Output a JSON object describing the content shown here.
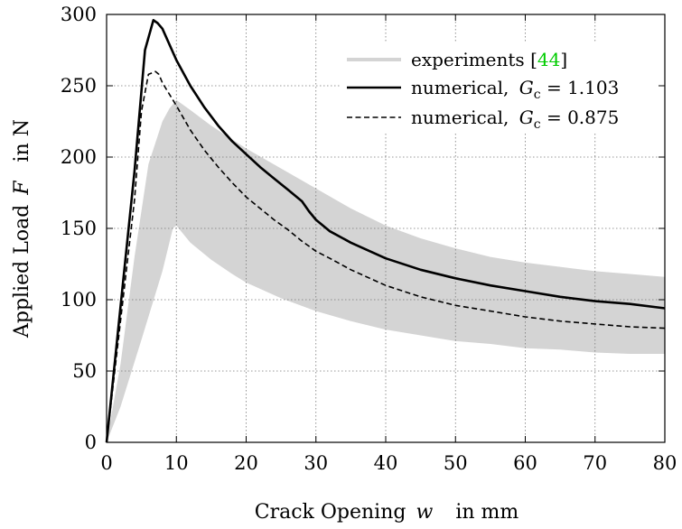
{
  "chart_data": {
    "type": "line",
    "xlabel_text": "Crack Opening",
    "xlabel_var": "w",
    "xlabel_unit": "in mm",
    "ylabel_text": "Applied Load",
    "ylabel_var": "F",
    "ylabel_unit": "in N",
    "xlim": [
      0,
      80
    ],
    "ylim": [
      0,
      300
    ],
    "x_ticks": [
      0,
      10,
      20,
      30,
      40,
      50,
      60,
      70,
      80
    ],
    "y_ticks": [
      0,
      50,
      100,
      150,
      200,
      250,
      300
    ],
    "grid": true,
    "legend_position": "top-right",
    "colors": {
      "band": "#d4d4d4",
      "line": "#000000",
      "citation": "#00cc00"
    },
    "band": {
      "name": "experiments",
      "citation": "44",
      "upper": [
        [
          0,
          0
        ],
        [
          2,
          55
        ],
        [
          4,
          130
        ],
        [
          6,
          195
        ],
        [
          8,
          225
        ],
        [
          9,
          234
        ],
        [
          10,
          240
        ],
        [
          12,
          233
        ],
        [
          15,
          222
        ],
        [
          20,
          206
        ],
        [
          25,
          192
        ],
        [
          30,
          178
        ],
        [
          35,
          164
        ],
        [
          40,
          152
        ],
        [
          45,
          143
        ],
        [
          50,
          136
        ],
        [
          55,
          130
        ],
        [
          60,
          126
        ],
        [
          65,
          123
        ],
        [
          70,
          120
        ],
        [
          75,
          118
        ],
        [
          80,
          116
        ]
      ],
      "lower": [
        [
          0,
          0
        ],
        [
          2,
          25
        ],
        [
          5,
          72
        ],
        [
          8,
          120
        ],
        [
          9.5,
          150
        ],
        [
          10,
          152
        ],
        [
          12,
          140
        ],
        [
          15,
          128
        ],
        [
          18,
          118
        ],
        [
          20,
          112
        ],
        [
          25,
          101
        ],
        [
          30,
          92
        ],
        [
          35,
          85
        ],
        [
          40,
          79
        ],
        [
          45,
          75
        ],
        [
          50,
          71
        ],
        [
          55,
          69
        ],
        [
          60,
          66
        ],
        [
          65,
          65
        ],
        [
          70,
          63
        ],
        [
          75,
          62
        ],
        [
          80,
          62
        ]
      ]
    },
    "series": [
      {
        "name_prefix": "numerical,",
        "name_param": "1.103",
        "style": "solid",
        "points": [
          [
            0,
            0
          ],
          [
            2,
            95
          ],
          [
            4,
            190
          ],
          [
            5.5,
            275
          ],
          [
            6.7,
            296
          ],
          [
            7.3,
            294
          ],
          [
            8,
            290
          ],
          [
            10,
            268
          ],
          [
            12,
            250
          ],
          [
            14,
            235
          ],
          [
            16,
            222
          ],
          [
            18,
            211
          ],
          [
            20,
            202
          ],
          [
            22,
            193
          ],
          [
            24,
            185
          ],
          [
            26,
            177
          ],
          [
            28,
            169
          ],
          [
            29,
            162
          ],
          [
            30,
            156
          ],
          [
            32,
            148
          ],
          [
            35,
            140
          ],
          [
            40,
            129
          ],
          [
            45,
            121
          ],
          [
            50,
            115
          ],
          [
            55,
            110
          ],
          [
            60,
            106
          ],
          [
            65,
            102
          ],
          [
            70,
            99
          ],
          [
            75,
            97
          ],
          [
            80,
            94
          ]
        ]
      },
      {
        "name_prefix": "numerical,",
        "name_param": "0.875",
        "style": "dashed",
        "points": [
          [
            0,
            0
          ],
          [
            2,
            85
          ],
          [
            4,
            170
          ],
          [
            5,
            232
          ],
          [
            6,
            258
          ],
          [
            7,
            260
          ],
          [
            7.5,
            258
          ],
          [
            8,
            252
          ],
          [
            10,
            236
          ],
          [
            12,
            219
          ],
          [
            14,
            205
          ],
          [
            16,
            193
          ],
          [
            18,
            182
          ],
          [
            20,
            172
          ],
          [
            22,
            164
          ],
          [
            24,
            156
          ],
          [
            26,
            149
          ],
          [
            28,
            141
          ],
          [
            30,
            134
          ],
          [
            32,
            129
          ],
          [
            35,
            121
          ],
          [
            40,
            110
          ],
          [
            45,
            102
          ],
          [
            50,
            96
          ],
          [
            55,
            92
          ],
          [
            60,
            88
          ],
          [
            65,
            85
          ],
          [
            70,
            83
          ],
          [
            75,
            81
          ],
          [
            80,
            80
          ]
        ]
      }
    ],
    "Gc_symbol": "G",
    "Gc_subscript": "c"
  }
}
